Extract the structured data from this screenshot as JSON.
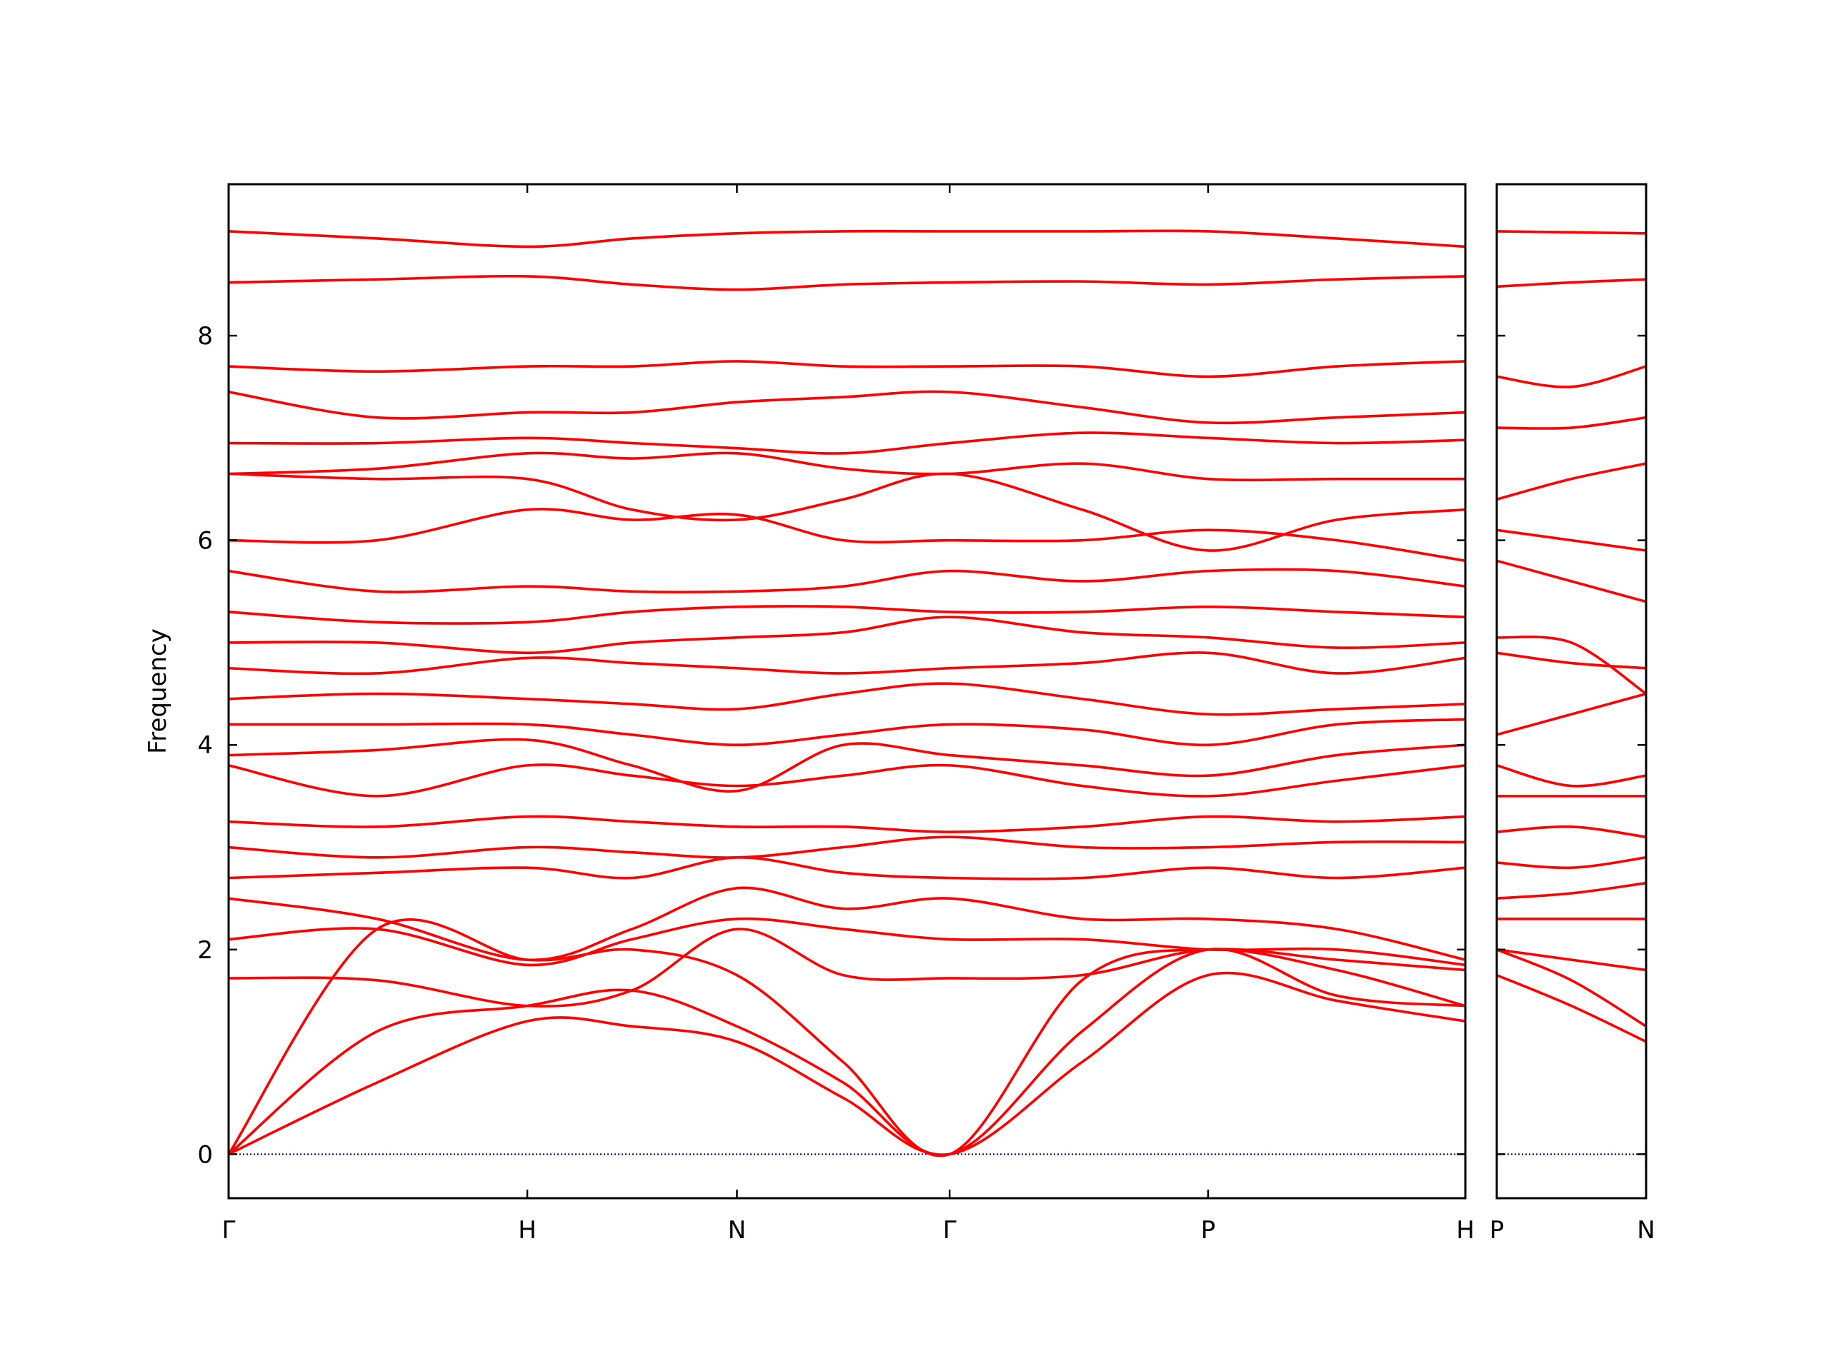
{
  "chart_data": [
    {
      "type": "line",
      "ylabel": "Frequency",
      "color": "#ff0000",
      "zero_line": {
        "value": 0,
        "color": "#00008b"
      },
      "x": [
        0,
        0.12,
        0.2415,
        0.326,
        0.411,
        0.497,
        0.583,
        0.69,
        0.792,
        0.896,
        1
      ],
      "xlim": [
        0,
        1
      ],
      "xticks": [
        {
          "value": 0,
          "label": "Γ"
        },
        {
          "value": 0.2415,
          "label": "H"
        },
        {
          "value": 0.411,
          "label": "N"
        },
        {
          "value": 0.583,
          "label": "Γ"
        },
        {
          "value": 0.792,
          "label": "P"
        },
        {
          "value": 1,
          "label": "H"
        }
      ],
      "ylim": [
        -0.43,
        9.48
      ],
      "yticks": [
        0,
        2,
        4,
        6,
        8
      ],
      "series": [
        {
          "values": [
            0,
            0.7,
            1.3,
            1.25,
            1.1,
            0.55,
            0,
            0.9,
            1.75,
            1.5,
            1.3
          ]
        },
        {
          "values": [
            0,
            1.2,
            1.45,
            1.6,
            1.25,
            0.7,
            0,
            1.2,
            2.0,
            1.55,
            1.45
          ]
        },
        {
          "values": [
            0,
            2.2,
            1.9,
            2.0,
            1.75,
            0.9,
            0,
            1.7,
            2.0,
            1.8,
            1.45
          ]
        },
        {
          "values": [
            1.72,
            1.7,
            1.45,
            1.6,
            2.2,
            1.75,
            1.72,
            1.75,
            2.0,
            1.9,
            1.8
          ]
        },
        {
          "values": [
            2.1,
            2.2,
            1.85,
            2.1,
            2.3,
            2.2,
            2.1,
            2.1,
            2.0,
            2.0,
            1.85
          ]
        },
        {
          "values": [
            2.5,
            2.3,
            1.9,
            2.2,
            2.6,
            2.4,
            2.5,
            2.3,
            2.3,
            2.2,
            1.9
          ]
        },
        {
          "values": [
            2.7,
            2.75,
            2.8,
            2.7,
            2.9,
            2.75,
            2.7,
            2.7,
            2.8,
            2.7,
            2.8
          ]
        },
        {
          "values": [
            3.0,
            2.9,
            3.0,
            2.95,
            2.9,
            3.0,
            3.1,
            3.0,
            3.0,
            3.05,
            3.05
          ]
        },
        {
          "values": [
            3.25,
            3.2,
            3.3,
            3.25,
            3.2,
            3.2,
            3.15,
            3.2,
            3.3,
            3.25,
            3.3
          ]
        },
        {
          "values": [
            3.8,
            3.5,
            3.8,
            3.7,
            3.6,
            3.7,
            3.8,
            3.6,
            3.5,
            3.65,
            3.8
          ]
        },
        {
          "values": [
            3.9,
            3.95,
            4.05,
            3.8,
            3.55,
            4.0,
            3.9,
            3.8,
            3.7,
            3.9,
            4.0
          ]
        },
        {
          "values": [
            4.2,
            4.2,
            4.2,
            4.1,
            4.0,
            4.1,
            4.2,
            4.15,
            4.0,
            4.2,
            4.25
          ]
        },
        {
          "values": [
            4.45,
            4.5,
            4.45,
            4.4,
            4.35,
            4.5,
            4.6,
            4.45,
            4.3,
            4.35,
            4.4
          ]
        },
        {
          "values": [
            4.75,
            4.7,
            4.85,
            4.8,
            4.75,
            4.7,
            4.75,
            4.8,
            4.9,
            4.7,
            4.85
          ]
        },
        {
          "values": [
            5.0,
            5.0,
            4.9,
            5.0,
            5.05,
            5.1,
            5.25,
            5.1,
            5.05,
            4.95,
            5.0
          ]
        },
        {
          "values": [
            5.3,
            5.2,
            5.2,
            5.3,
            5.35,
            5.35,
            5.3,
            5.3,
            5.35,
            5.3,
            5.25
          ]
        },
        {
          "values": [
            5.7,
            5.5,
            5.55,
            5.5,
            5.5,
            5.55,
            5.7,
            5.6,
            5.7,
            5.7,
            5.55
          ]
        },
        {
          "values": [
            6.0,
            6.0,
            6.3,
            6.2,
            6.25,
            6.0,
            6.0,
            6.0,
            6.1,
            6.0,
            5.8
          ]
        },
        {
          "values": [
            6.65,
            6.6,
            6.6,
            6.3,
            6.2,
            6.4,
            6.65,
            6.3,
            5.9,
            6.2,
            6.3
          ]
        },
        {
          "values": [
            6.65,
            6.7,
            6.85,
            6.8,
            6.85,
            6.7,
            6.65,
            6.75,
            6.6,
            6.6,
            6.6
          ]
        },
        {
          "values": [
            6.95,
            6.95,
            7.0,
            6.95,
            6.9,
            6.85,
            6.95,
            7.05,
            7.0,
            6.95,
            6.98
          ]
        },
        {
          "values": [
            7.45,
            7.2,
            7.25,
            7.25,
            7.35,
            7.4,
            7.45,
            7.3,
            7.15,
            7.2,
            7.25
          ]
        },
        {
          "values": [
            7.7,
            7.65,
            7.7,
            7.7,
            7.75,
            7.7,
            7.7,
            7.7,
            7.6,
            7.7,
            7.75
          ]
        },
        {
          "values": [
            8.52,
            8.55,
            8.58,
            8.5,
            8.45,
            8.5,
            8.52,
            8.53,
            8.5,
            8.55,
            8.58
          ]
        },
        {
          "values": [
            9.02,
            8.95,
            8.87,
            8.95,
            9.0,
            9.02,
            9.02,
            9.02,
            9.02,
            8.95,
            8.87
          ]
        }
      ]
    },
    {
      "type": "line",
      "color": "#ff0000",
      "zero_line": {
        "value": 0,
        "color": "#00008b"
      },
      "x": [
        0,
        0.5,
        1
      ],
      "xlim": [
        0,
        1
      ],
      "xticks": [
        {
          "value": 0,
          "label": "P"
        },
        {
          "value": 1,
          "label": "N"
        }
      ],
      "ylim": [
        -0.43,
        9.48
      ],
      "series": [
        {
          "values": [
            1.75,
            1.45,
            1.1
          ]
        },
        {
          "values": [
            2.0,
            1.7,
            1.25
          ]
        },
        {
          "values": [
            2.0,
            1.9,
            1.8
          ]
        },
        {
          "values": [
            2.3,
            2.3,
            2.3
          ]
        },
        {
          "values": [
            2.5,
            2.55,
            2.65
          ]
        },
        {
          "values": [
            2.85,
            2.8,
            2.9
          ]
        },
        {
          "values": [
            3.15,
            3.2,
            3.1
          ]
        },
        {
          "values": [
            3.5,
            3.5,
            3.5
          ]
        },
        {
          "values": [
            3.8,
            3.6,
            3.7
          ]
        },
        {
          "values": [
            4.1,
            4.3,
            4.5
          ]
        },
        {
          "values": [
            4.9,
            4.8,
            4.75
          ]
        },
        {
          "values": [
            5.05,
            5.0,
            4.5
          ]
        },
        {
          "values": [
            5.8,
            5.6,
            5.4
          ]
        },
        {
          "values": [
            6.1,
            6.0,
            5.9
          ]
        },
        {
          "values": [
            6.4,
            6.6,
            6.75
          ]
        },
        {
          "values": [
            7.1,
            7.1,
            7.2
          ]
        },
        {
          "values": [
            7.6,
            7.5,
            7.7
          ]
        },
        {
          "values": [
            8.48,
            8.52,
            8.55
          ]
        },
        {
          "values": [
            9.02,
            9.01,
            9.0
          ]
        }
      ]
    }
  ]
}
